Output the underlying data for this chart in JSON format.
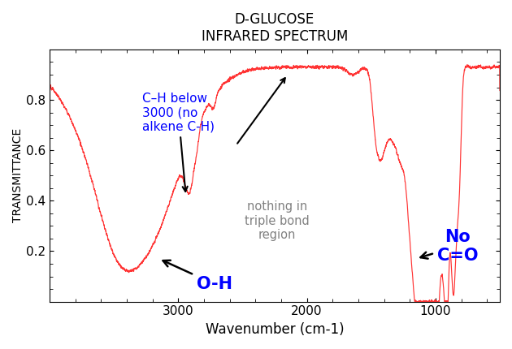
{
  "title_line1": "D-GLUCOSE",
  "title_line2": "INFRARED SPECTRUM",
  "xlabel": "Wavenumber (cm-1)",
  "ylabel": "TRANSMITTANCE",
  "xlim": [
    4000,
    500
  ],
  "ylim": [
    0.0,
    1.0
  ],
  "xticks": [
    3000,
    2000,
    1000
  ],
  "yticks": [
    0.2,
    0.4,
    0.6,
    0.8
  ],
  "line_color": "#FF3333",
  "bg_color": "#FFFFFF",
  "ch_text": "C–H below\n3000 (no\nalkene C-H)",
  "oh_text": "O-H",
  "triple_text": "nothing in\ntriple bond\nregion",
  "no_co_text": "No\nC=O"
}
